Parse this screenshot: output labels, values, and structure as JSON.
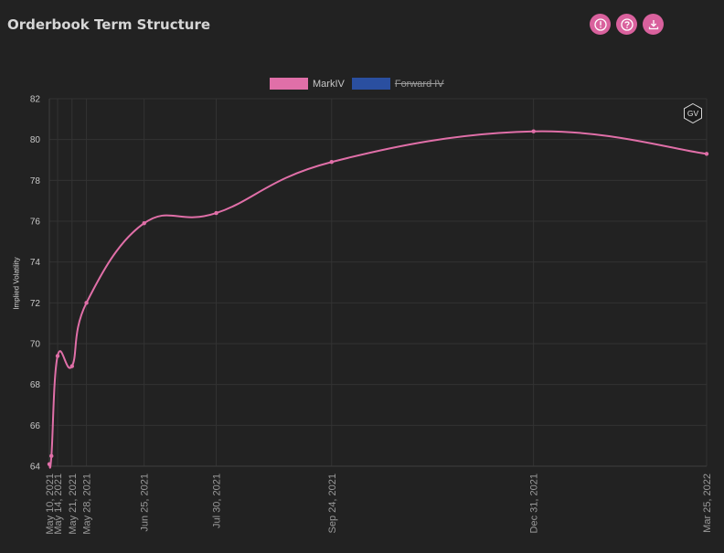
{
  "header": {
    "title": "Orderbook Term Structure",
    "buttons": [
      {
        "name": "info",
        "icon": "exclamation-icon",
        "glyph": "!"
      },
      {
        "name": "help",
        "icon": "question-icon",
        "glyph": "?"
      },
      {
        "name": "download",
        "icon": "download-icon"
      }
    ]
  },
  "colors": {
    "background": "#222222",
    "accent": "#d9619d",
    "series_mark_iv": "#e06fa8",
    "series_forward_iv": "#2a4fa0",
    "grid": "#333333",
    "tick_label": "#9a9a9a"
  },
  "badge": {
    "label": "GV"
  },
  "chart_data": {
    "type": "line",
    "title": "",
    "ylabel": "Implied Volatility",
    "xlabel": "",
    "ylim": [
      64,
      82
    ],
    "y_ticks": [
      64,
      66,
      68,
      70,
      72,
      74,
      76,
      78,
      80,
      82
    ],
    "x_axis_type": "date",
    "grid": true,
    "legend_position": "top-center",
    "legend": [
      {
        "name": "MarkIV",
        "hidden": false
      },
      {
        "name": "Forward IV",
        "hidden": true
      }
    ],
    "x_ticks": [
      "May 10, 2021",
      "May 14, 2021",
      "May 21, 2021",
      "May 28, 2021",
      "Jun 25, 2021",
      "Jul 30, 2021",
      "Sep 24, 2021",
      "Dec 31, 2021",
      "Mar 25, 2022"
    ],
    "series": [
      {
        "name": "MarkIV",
        "x": [
          "2021-05-10",
          "2021-05-11",
          "2021-05-14",
          "2021-05-21",
          "2021-05-28",
          "2021-06-25",
          "2021-07-30",
          "2021-09-24",
          "2021-12-31",
          "2022-03-25"
        ],
        "values": [
          64.1,
          64.5,
          69.4,
          68.9,
          72.0,
          75.9,
          76.4,
          78.9,
          80.4,
          79.3
        ]
      },
      {
        "name": "Forward IV",
        "x": [],
        "values": []
      }
    ]
  }
}
